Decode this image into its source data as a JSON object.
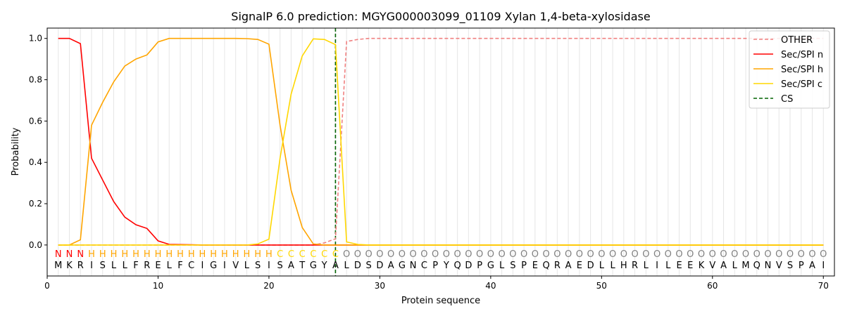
{
  "chart_data": {
    "type": "line",
    "title": "SignalP 6.0 prediction: MGYG000003099_01109 Xylan 1,4-beta-xylosidase",
    "xlabel": "Protein sequence",
    "ylabel": "Probability",
    "xlim": [
      0,
      71
    ],
    "ylim": [
      -0.15,
      1.05
    ],
    "xticks": [
      0,
      10,
      20,
      30,
      40,
      50,
      60,
      70
    ],
    "yticks": [
      0.0,
      0.2,
      0.4,
      0.6,
      0.8,
      1.0
    ],
    "grid": "vertical lines at each residue",
    "legend_position": "top-right",
    "sequence": [
      "M",
      "K",
      "R",
      "I",
      "S",
      "L",
      "L",
      "F",
      "R",
      "E",
      "L",
      "F",
      "C",
      "I",
      "G",
      "I",
      "V",
      "L",
      "S",
      "I",
      "S",
      "A",
      "T",
      "G",
      "Y",
      "A",
      "L",
      "D",
      "S",
      "D",
      "A",
      "G",
      "N",
      "C",
      "P",
      "Y",
      "Q",
      "D",
      "P",
      "G",
      "L",
      "S",
      "P",
      "E",
      "Q",
      "R",
      "A",
      "E",
      "D",
      "L",
      "L",
      "H",
      "R",
      "L",
      "I",
      "L",
      "E",
      "E",
      "K",
      "V",
      "A",
      "L",
      "M",
      "Q",
      "N",
      "V",
      "S",
      "P",
      "A",
      "I"
    ],
    "region_labels": [
      "N",
      "N",
      "N",
      "H",
      "H",
      "H",
      "H",
      "H",
      "H",
      "H",
      "H",
      "H",
      "H",
      "H",
      "H",
      "H",
      "H",
      "H",
      "H",
      "H",
      "C",
      "C",
      "C",
      "C",
      "C",
      "C",
      "O",
      "O",
      "O",
      "O",
      "O",
      "O",
      "O",
      "O",
      "O",
      "O",
      "O",
      "O",
      "O",
      "O",
      "O",
      "O",
      "O",
      "O",
      "O",
      "O",
      "O",
      "O",
      "O",
      "O",
      "O",
      "O",
      "O",
      "O",
      "O",
      "O",
      "O",
      "O",
      "O",
      "O",
      "O",
      "O",
      "O",
      "O",
      "O",
      "O",
      "O",
      "O",
      "O",
      "O"
    ],
    "region_colors": {
      "N": "#ff0000",
      "H": "#ffa500",
      "C": "#ffd700",
      "O": "#808080"
    },
    "cleavage_site": 26,
    "series": [
      {
        "name": "OTHER",
        "color": "#f08080",
        "style": "dashed",
        "values": [
          0,
          0,
          0,
          0,
          0,
          0,
          0,
          0,
          0,
          0,
          0,
          0,
          0,
          0,
          0,
          0,
          0,
          0,
          0,
          0,
          0,
          0,
          0,
          0,
          0.01,
          0.03,
          0.985,
          0.995,
          1,
          1,
          1,
          1,
          1,
          1,
          1,
          1,
          1,
          1,
          1,
          1,
          1,
          1,
          1,
          1,
          1,
          1,
          1,
          1,
          1,
          1,
          1,
          1,
          1,
          1,
          1,
          1,
          1,
          1,
          1,
          1,
          1,
          1,
          1,
          1,
          1,
          1,
          1,
          1,
          1,
          1
        ]
      },
      {
        "name": "Sec/SPI n",
        "color": "#ff0000",
        "style": "solid",
        "values": [
          1.0,
          1.0,
          0.975,
          0.42,
          0.315,
          0.21,
          0.135,
          0.098,
          0.08,
          0.02,
          0.003,
          0.002,
          0.001,
          0,
          0,
          0,
          0,
          0,
          0,
          0,
          0,
          0,
          0,
          0,
          0,
          0,
          0,
          0,
          0,
          0,
          0,
          0,
          0,
          0,
          0,
          0,
          0,
          0,
          0,
          0,
          0,
          0,
          0,
          0,
          0,
          0,
          0,
          0,
          0,
          0,
          0,
          0,
          0,
          0,
          0,
          0,
          0,
          0,
          0,
          0,
          0,
          0,
          0,
          0,
          0,
          0,
          0,
          0,
          0,
          0
        ]
      },
      {
        "name": "Sec/SPI h",
        "color": "#ffa500",
        "style": "solid",
        "values": [
          0,
          0,
          0.025,
          0.58,
          0.69,
          0.79,
          0.866,
          0.9,
          0.92,
          0.983,
          1.0,
          1.0,
          1.0,
          1.0,
          1.0,
          1.0,
          1.0,
          0.999,
          0.995,
          0.972,
          0.58,
          0.265,
          0.085,
          0.005,
          0,
          0,
          0,
          0,
          0,
          0,
          0,
          0,
          0,
          0,
          0,
          0,
          0,
          0,
          0,
          0,
          0,
          0,
          0,
          0,
          0,
          0,
          0,
          0,
          0,
          0,
          0,
          0,
          0,
          0,
          0,
          0,
          0,
          0,
          0,
          0,
          0,
          0,
          0,
          0,
          0,
          0,
          0,
          0,
          0,
          0
        ]
      },
      {
        "name": "Sec/SPI c",
        "color": "#ffd700",
        "style": "solid",
        "values": [
          0,
          0,
          0,
          0,
          0,
          0,
          0,
          0,
          0,
          0,
          0,
          0,
          0,
          0,
          0,
          0,
          0,
          0,
          0.005,
          0.028,
          0.42,
          0.73,
          0.915,
          0.998,
          0.995,
          0.97,
          0.015,
          0.003,
          0,
          0,
          0,
          0,
          0,
          0,
          0,
          0,
          0,
          0,
          0,
          0,
          0,
          0,
          0,
          0,
          0,
          0,
          0,
          0,
          0,
          0,
          0,
          0,
          0,
          0,
          0,
          0,
          0,
          0,
          0,
          0,
          0,
          0,
          0,
          0,
          0,
          0,
          0,
          0,
          0,
          0
        ]
      },
      {
        "name": "CS",
        "color": "#006400",
        "style": "dashed",
        "vertical_at": 26
      }
    ]
  }
}
